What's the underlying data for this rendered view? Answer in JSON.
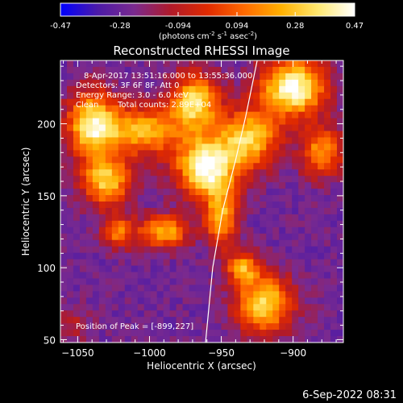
{
  "colorbar": {
    "tick_labels": [
      "-0.47",
      "-0.28",
      "-0.094",
      "0.094",
      "0.28",
      "0.47"
    ],
    "tick_values": [
      -0.47,
      -0.28,
      -0.094,
      0.094,
      0.28,
      0.47
    ],
    "range": [
      -0.47,
      0.47
    ],
    "units_text": "(photons cm",
    "units_exp1": "-2",
    "units_mid": " s",
    "units_exp2": "-1",
    "units_mid2": " asec",
    "units_exp3": "-2",
    "units_end": ")",
    "colors": [
      "#0000ff",
      "#4b1aa8",
      "#7a2a8f",
      "#b01a2a",
      "#e02a00",
      "#ff6a00",
      "#ffb000",
      "#ffe870",
      "#ffffff"
    ]
  },
  "chart_data": {
    "type": "heatmap",
    "title": "Reconstructed RHESSI Image",
    "xlabel": "Heliocentric X (arcsec)",
    "ylabel": "Heliocentric Y (arcsec)",
    "xlim": [
      -1062,
      -865
    ],
    "ylim": [
      48,
      244
    ],
    "x_ticks": [
      -1050,
      -1000,
      -950,
      -900
    ],
    "x_tick_labels": [
      "−1050",
      "−1000",
      "−950",
      "−900"
    ],
    "y_ticks": [
      50,
      100,
      150,
      200
    ],
    "y_tick_labels": [
      "50",
      "100",
      "150",
      "200"
    ],
    "limb_line": [
      [
        -961,
        48
      ],
      [
        -956,
        100
      ],
      [
        -949,
        140
      ],
      [
        -940,
        175
      ],
      [
        -933,
        205
      ],
      [
        -925,
        244
      ]
    ],
    "peak": [
      -899,
      227
    ],
    "sources": [
      {
        "x": -1040,
        "y": 200,
        "sx": 12,
        "sy": 16,
        "amp": 0.38
      },
      {
        "x": -1005,
        "y": 195,
        "sx": 18,
        "sy": 12,
        "amp": 0.25
      },
      {
        "x": -968,
        "y": 215,
        "sx": 12,
        "sy": 14,
        "amp": 0.34
      },
      {
        "x": -960,
        "y": 170,
        "sx": 15,
        "sy": 15,
        "amp": 0.47
      },
      {
        "x": -950,
        "y": 135,
        "sx": 8,
        "sy": 14,
        "amp": 0.22
      },
      {
        "x": -1030,
        "y": 160,
        "sx": 12,
        "sy": 12,
        "amp": 0.3
      },
      {
        "x": -1022,
        "y": 125,
        "sx": 8,
        "sy": 8,
        "amp": 0.14
      },
      {
        "x": -990,
        "y": 125,
        "sx": 12,
        "sy": 8,
        "amp": 0.24
      },
      {
        "x": -900,
        "y": 225,
        "sx": 16,
        "sy": 14,
        "amp": 0.47
      },
      {
        "x": -930,
        "y": 190,
        "sx": 14,
        "sy": 14,
        "amp": 0.3
      },
      {
        "x": -880,
        "y": 180,
        "sx": 10,
        "sy": 12,
        "amp": 0.2
      },
      {
        "x": -920,
        "y": 75,
        "sx": 14,
        "sy": 14,
        "amp": 0.34
      },
      {
        "x": -935,
        "y": 100,
        "sx": 8,
        "sy": 8,
        "amp": 0.18
      },
      {
        "x": -1055,
        "y": 60,
        "sx": 10,
        "sy": 10,
        "amp": -0.12
      }
    ]
  },
  "info": {
    "line1": "8-Apr-2017 13:51:16.000 to 13:55:36.000",
    "line2": "Detectors: 3F 6F 8F, Att 0",
    "line3": "Energy Range: 3.0 - 6.0 keV",
    "line4a": "Clean",
    "line4b": "Total counts: 2.89E+04",
    "peak_text": "Position of Peak = [-899,227]"
  },
  "timestamp": "6-Sep-2022 08:31"
}
